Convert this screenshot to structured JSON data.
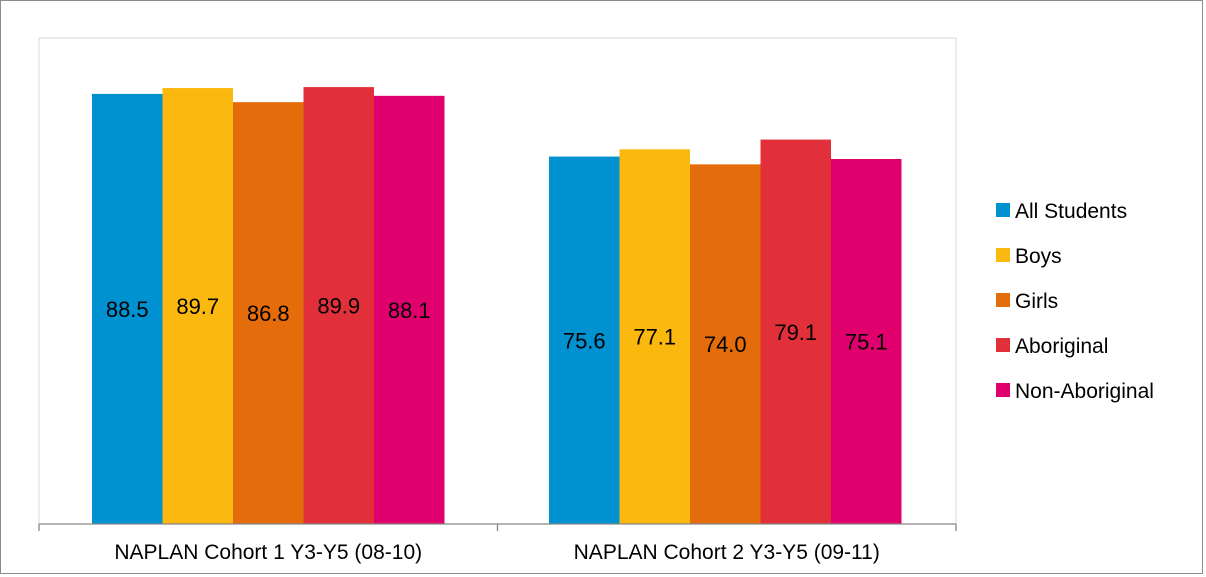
{
  "chart_data": {
    "type": "bar",
    "categories": [
      "NAPLAN Cohort 1 Y3-Y5 (08-10)",
      "NAPLAN Cohort 2 Y3-Y5 (09-11)"
    ],
    "series": [
      {
        "name": "All Students",
        "values": [
          88.5,
          75.6
        ],
        "color": "#0091d0"
      },
      {
        "name": "Boys",
        "values": [
          89.7,
          77.1
        ],
        "color": "#fbb80f"
      },
      {
        "name": "Girls",
        "values": [
          86.8,
          74.0
        ],
        "color": "#e46c0a"
      },
      {
        "name": "Aboriginal",
        "values": [
          89.9,
          79.1
        ],
        "color": "#e2303a"
      },
      {
        "name": "Non-Aboriginal",
        "values": [
          88.1,
          75.1
        ],
        "color": "#e0006d"
      }
    ],
    "value_labels": [
      [
        "88.5",
        "75.6"
      ],
      [
        "89.7",
        "77.1"
      ],
      [
        "86.8",
        "74.0"
      ],
      [
        "89.9",
        "79.1"
      ],
      [
        "88.1",
        "75.1"
      ]
    ],
    "ylim": [
      0,
      100
    ],
    "grid": false,
    "legend_position": "right",
    "title": "",
    "xlabel": "",
    "ylabel": ""
  }
}
